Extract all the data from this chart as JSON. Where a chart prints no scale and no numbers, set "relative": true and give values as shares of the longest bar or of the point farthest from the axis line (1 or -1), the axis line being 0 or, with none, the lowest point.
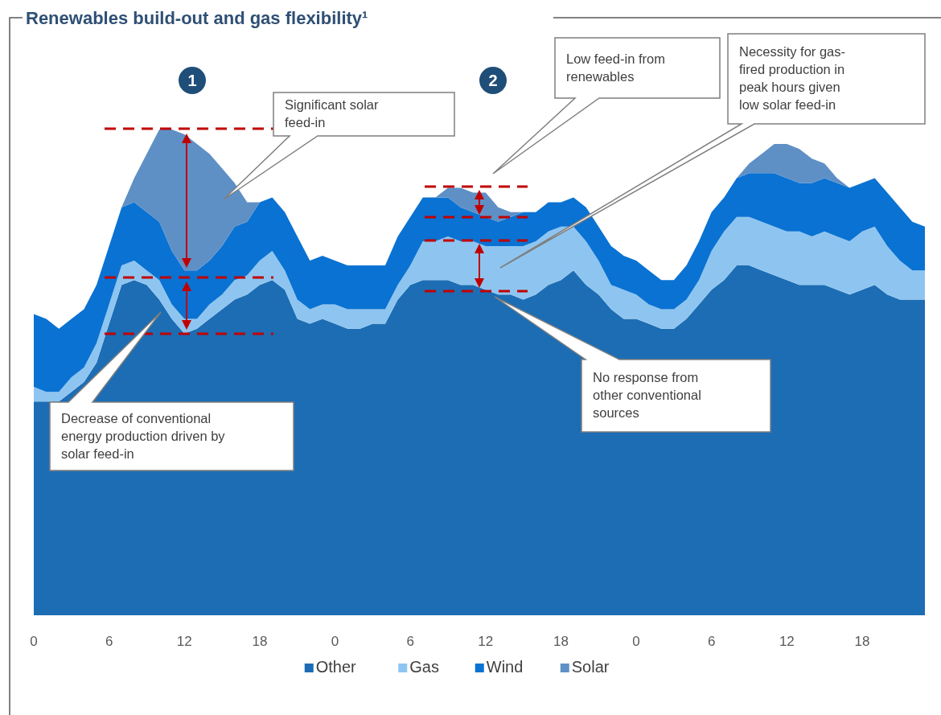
{
  "chart_data": {
    "type": "area",
    "stacked": true,
    "relative": true,
    "title": "Renewables build-out and gas flexibility¹",
    "categories": [
      "0",
      null,
      null,
      null,
      null,
      null,
      "6",
      null,
      null,
      null,
      null,
      null,
      "12",
      null,
      null,
      null,
      null,
      null,
      "18",
      null,
      null,
      null,
      null,
      null,
      "0",
      null,
      null,
      null,
      null,
      null,
      "6",
      null,
      null,
      null,
      null,
      null,
      "12",
      null,
      null,
      null,
      null,
      null,
      "18",
      null,
      null,
      null,
      null,
      null,
      "0",
      null,
      null,
      null,
      null,
      null,
      "6",
      null,
      null,
      null,
      null,
      null,
      "12",
      null,
      null,
      null,
      null,
      null,
      "18",
      null,
      null,
      null,
      null,
      null
    ],
    "tick_labels": "x",
    "legend": "bottom",
    "series": [
      {
        "name": "Other",
        "color": "#1c6db4",
        "values": [
          0.44,
          0.44,
          0.44,
          0.46,
          0.48,
          0.52,
          0.6,
          0.68,
          0.69,
          0.68,
          0.65,
          0.61,
          0.58,
          0.59,
          0.61,
          0.63,
          0.65,
          0.66,
          0.68,
          0.69,
          0.67,
          0.61,
          0.6,
          0.61,
          0.6,
          0.59,
          0.59,
          0.6,
          0.6,
          0.65,
          0.68,
          0.69,
          0.69,
          0.69,
          0.68,
          0.68,
          0.67,
          0.66,
          0.66,
          0.65,
          0.66,
          0.68,
          0.69,
          0.71,
          0.68,
          0.66,
          0.63,
          0.61,
          0.61,
          0.6,
          0.59,
          0.59,
          0.61,
          0.64,
          0.67,
          0.69,
          0.72,
          0.72,
          0.71,
          0.7,
          0.69,
          0.68,
          0.68,
          0.68,
          0.67,
          0.66,
          0.67,
          0.68,
          0.66,
          0.65,
          0.65,
          0.65
        ]
      },
      {
        "name": "Gas",
        "color": "#8ec5f0",
        "values": [
          0.03,
          0.02,
          0.02,
          0.03,
          0.03,
          0.04,
          0.04,
          0.04,
          0.04,
          0.03,
          0.04,
          0.03,
          0.03,
          0.02,
          0.03,
          0.03,
          0.04,
          0.04,
          0.05,
          0.06,
          0.04,
          0.04,
          0.03,
          0.03,
          0.04,
          0.04,
          0.04,
          0.03,
          0.03,
          0.03,
          0.04,
          0.08,
          0.08,
          0.09,
          0.09,
          0.09,
          0.09,
          0.1,
          0.1,
          0.11,
          0.11,
          0.11,
          0.11,
          0.09,
          0.09,
          0.07,
          0.05,
          0.06,
          0.05,
          0.04,
          0.04,
          0.04,
          0.04,
          0.05,
          0.08,
          0.1,
          0.1,
          0.1,
          0.1,
          0.1,
          0.1,
          0.11,
          0.1,
          0.11,
          0.11,
          0.11,
          0.12,
          0.12,
          0.1,
          0.08,
          0.06,
          0.06
        ]
      },
      {
        "name": "Wind",
        "color": "#0a72d2",
        "values": [
          0.15,
          0.15,
          0.13,
          0.12,
          0.12,
          0.12,
          0.12,
          0.12,
          0.12,
          0.12,
          0.12,
          0.11,
          0.1,
          0.1,
          0.09,
          0.1,
          0.11,
          0.11,
          0.12,
          0.11,
          0.12,
          0.13,
          0.1,
          0.1,
          0.09,
          0.09,
          0.09,
          0.09,
          0.09,
          0.1,
          0.1,
          0.09,
          0.09,
          0.08,
          0.07,
          0.06,
          0.06,
          0.05,
          0.06,
          0.07,
          0.06,
          0.06,
          0.05,
          0.06,
          0.07,
          0.07,
          0.08,
          0.07,
          0.07,
          0.07,
          0.06,
          0.06,
          0.07,
          0.08,
          0.08,
          0.07,
          0.08,
          0.09,
          0.1,
          0.11,
          0.11,
          0.1,
          0.11,
          0.11,
          0.11,
          0.11,
          0.1,
          0.1,
          0.11,
          0.11,
          0.1,
          0.09
        ]
      },
      {
        "name": "Solar",
        "color": "#5e90c6",
        "values": [
          0,
          0,
          0,
          0,
          0,
          0,
          0,
          0,
          0.05,
          0.12,
          0.19,
          0.25,
          0.28,
          0.26,
          0.22,
          0.16,
          0.09,
          0.04,
          0,
          0,
          0,
          0,
          0,
          0,
          0,
          0,
          0,
          0,
          0,
          0,
          0,
          0,
          0,
          0.02,
          0.04,
          0.04,
          0.05,
          0.03,
          0.01,
          0,
          0,
          0,
          0,
          0,
          0,
          0,
          0,
          0,
          0,
          0,
          0,
          0,
          0,
          0,
          0,
          0,
          0,
          0.02,
          0.04,
          0.06,
          0.07,
          0.07,
          0.05,
          0.03,
          0.01,
          0,
          0,
          0,
          0,
          0,
          0,
          0
        ]
      }
    ],
    "annotations": [
      "1",
      "2",
      "Significant solar\nfeed-in",
      "Low feed-in from\nrenewables",
      "Necessity for gas-\nfired production in\npeak hours given\nlow solar feed-in",
      "No response from\nother conventional\nsources",
      "Decrease of conventional\nenergy production driven by\nsolar feed-in"
    ]
  }
}
